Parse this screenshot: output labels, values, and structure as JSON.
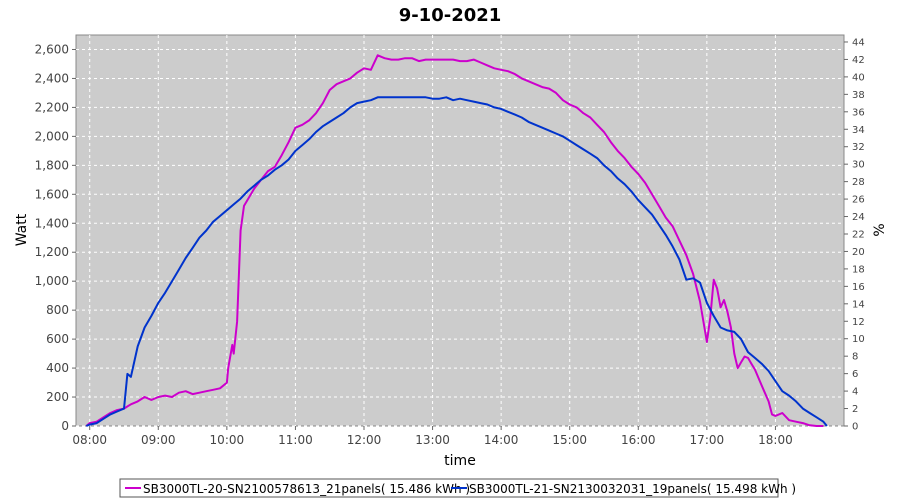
{
  "chart_data": {
    "type": "line",
    "title": "9-10-2021",
    "xlabel": "time",
    "ylabel": "Watt",
    "y2label": "%",
    "x_ticks": [
      "08:00",
      "09:00",
      "10:00",
      "11:00",
      "12:00",
      "13:00",
      "14:00",
      "15:00",
      "16:00",
      "17:00",
      "18:00"
    ],
    "xlim": [
      7.8,
      19.0
    ],
    "ylim": [
      0,
      2700
    ],
    "y_ticks": [
      0,
      200,
      400,
      600,
      800,
      1000,
      1200,
      1400,
      1600,
      1800,
      2000,
      2200,
      2400,
      2600
    ],
    "y_tick_labels": [
      "0",
      "200",
      "400",
      "600",
      "800",
      "1,000",
      "1,200",
      "1,400",
      "1,600",
      "1,800",
      "2,000",
      "2,200",
      "2,400",
      "2,600"
    ],
    "y2lim": [
      0,
      44.8
    ],
    "y2_ticks": [
      0,
      2,
      4,
      6,
      8,
      10,
      12,
      14,
      16,
      18,
      20,
      22,
      24,
      26,
      28,
      30,
      32,
      34,
      36,
      38,
      40,
      42,
      44
    ],
    "grid": true,
    "legend_position": "bottom",
    "background": "#cccccc",
    "series": [
      {
        "name": "SB3000TL-20-SN2100578613_21panels( 15.486 kWh )",
        "color": "#cc00cc",
        "x": [
          7.95,
          8.0,
          8.1,
          8.2,
          8.3,
          8.4,
          8.5,
          8.6,
          8.7,
          8.8,
          8.9,
          9.0,
          9.1,
          9.2,
          9.3,
          9.4,
          9.5,
          9.6,
          9.7,
          9.8,
          9.9,
          10.0,
          10.02,
          10.08,
          10.1,
          10.15,
          10.2,
          10.25,
          10.3,
          10.4,
          10.5,
          10.6,
          10.7,
          10.8,
          10.9,
          11.0,
          11.1,
          11.2,
          11.3,
          11.4,
          11.5,
          11.6,
          11.7,
          11.8,
          11.9,
          12.0,
          12.1,
          12.2,
          12.3,
          12.4,
          12.5,
          12.6,
          12.7,
          12.8,
          12.9,
          13.0,
          13.1,
          13.2,
          13.3,
          13.4,
          13.5,
          13.6,
          13.7,
          13.8,
          13.9,
          14.0,
          14.1,
          14.2,
          14.3,
          14.4,
          14.5,
          14.6,
          14.7,
          14.8,
          14.9,
          15.0,
          15.1,
          15.2,
          15.3,
          15.4,
          15.5,
          15.6,
          15.7,
          15.8,
          15.9,
          16.0,
          16.1,
          16.2,
          16.3,
          16.4,
          16.5,
          16.6,
          16.7,
          16.8,
          16.9,
          17.0,
          17.05,
          17.1,
          17.15,
          17.2,
          17.25,
          17.3,
          17.35,
          17.4,
          17.45,
          17.5,
          17.55,
          17.6,
          17.65,
          17.7,
          17.8,
          17.9,
          17.95,
          18.0,
          18.1,
          18.2,
          18.3,
          18.4,
          18.5,
          18.6,
          18.7
        ],
        "y": [
          0,
          20,
          30,
          60,
          90,
          110,
          120,
          150,
          170,
          200,
          180,
          200,
          210,
          200,
          230,
          240,
          220,
          230,
          240,
          250,
          260,
          300,
          400,
          560,
          500,
          720,
          1350,
          1520,
          1560,
          1640,
          1700,
          1760,
          1790,
          1870,
          1960,
          2060,
          2080,
          2110,
          2160,
          2230,
          2320,
          2360,
          2380,
          2400,
          2440,
          2470,
          2460,
          2560,
          2540,
          2530,
          2530,
          2540,
          2540,
          2520,
          2530,
          2530,
          2530,
          2530,
          2530,
          2520,
          2520,
          2530,
          2510,
          2490,
          2470,
          2460,
          2450,
          2430,
          2400,
          2380,
          2360,
          2340,
          2330,
          2300,
          2250,
          2220,
          2200,
          2160,
          2130,
          2080,
          2030,
          1960,
          1900,
          1850,
          1790,
          1740,
          1680,
          1600,
          1520,
          1440,
          1380,
          1280,
          1180,
          1050,
          860,
          580,
          750,
          1010,
          950,
          820,
          870,
          790,
          680,
          500,
          400,
          440,
          480,
          470,
          430,
          390,
          280,
          170,
          80,
          70,
          90,
          40,
          30,
          20,
          5,
          0,
          0
        ]
      },
      {
        "name": "SB3000TL-21-SN2130032031_19panels( 15.498 kWh )",
        "color": "#0033cc",
        "x": [
          7.95,
          8.0,
          8.1,
          8.2,
          8.3,
          8.4,
          8.5,
          8.55,
          8.6,
          8.7,
          8.8,
          8.9,
          9.0,
          9.1,
          9.2,
          9.3,
          9.4,
          9.5,
          9.6,
          9.7,
          9.8,
          9.9,
          10.0,
          10.1,
          10.2,
          10.3,
          10.4,
          10.5,
          10.6,
          10.7,
          10.8,
          10.9,
          11.0,
          11.1,
          11.2,
          11.3,
          11.4,
          11.5,
          11.6,
          11.7,
          11.8,
          11.9,
          12.0,
          12.1,
          12.2,
          12.3,
          12.4,
          12.5,
          12.6,
          12.7,
          12.8,
          12.9,
          13.0,
          13.1,
          13.2,
          13.3,
          13.4,
          13.5,
          13.6,
          13.7,
          13.8,
          13.9,
          14.0,
          14.1,
          14.2,
          14.3,
          14.4,
          14.5,
          14.6,
          14.7,
          14.8,
          14.9,
          15.0,
          15.1,
          15.2,
          15.3,
          15.4,
          15.5,
          15.6,
          15.7,
          15.8,
          15.9,
          16.0,
          16.1,
          16.2,
          16.3,
          16.4,
          16.5,
          16.6,
          16.7,
          16.8,
          16.9,
          17.0,
          17.1,
          17.2,
          17.3,
          17.4,
          17.5,
          17.6,
          17.7,
          17.8,
          17.9,
          18.0,
          18.1,
          18.2,
          18.3,
          18.4,
          18.5,
          18.6,
          18.7,
          18.75
        ],
        "y": [
          0,
          10,
          20,
          50,
          80,
          100,
          120,
          360,
          340,
          550,
          680,
          760,
          850,
          920,
          1000,
          1080,
          1160,
          1230,
          1300,
          1350,
          1410,
          1450,
          1490,
          1530,
          1570,
          1620,
          1660,
          1700,
          1730,
          1770,
          1800,
          1840,
          1900,
          1940,
          1980,
          2030,
          2070,
          2100,
          2130,
          2160,
          2200,
          2230,
          2240,
          2250,
          2270,
          2270,
          2270,
          2270,
          2270,
          2270,
          2270,
          2270,
          2260,
          2260,
          2270,
          2250,
          2260,
          2250,
          2240,
          2230,
          2220,
          2200,
          2190,
          2170,
          2150,
          2130,
          2100,
          2080,
          2060,
          2040,
          2020,
          2000,
          1970,
          1940,
          1910,
          1880,
          1850,
          1800,
          1760,
          1710,
          1670,
          1620,
          1560,
          1510,
          1460,
          1390,
          1320,
          1240,
          1150,
          1010,
          1020,
          990,
          850,
          760,
          680,
          660,
          650,
          600,
          510,
          470,
          430,
          380,
          310,
          240,
          210,
          170,
          120,
          90,
          60,
          30,
          0
        ]
      }
    ]
  }
}
